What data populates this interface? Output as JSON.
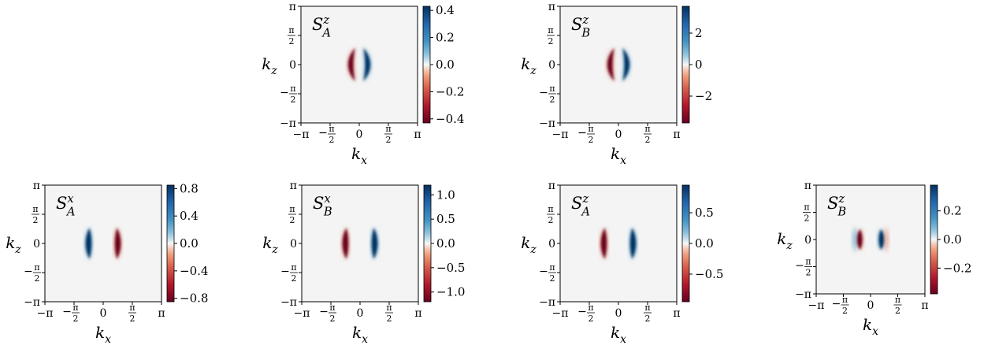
{
  "colors": {
    "neg": "#67001f",
    "pos": "#053061",
    "mid": "#f7f7f7",
    "background": "#f4f4f4"
  },
  "chart_data": [
    {
      "type": "heatmap",
      "title": "S_A^z",
      "title_main": "S",
      "title_sup": "z",
      "title_sub": "A",
      "xlabel": "k",
      "xlabel_sub": "x",
      "ylabel": "k",
      "ylabel_sub": "z",
      "xlim": [
        -3.1416,
        3.1416
      ],
      "ylim": [
        -3.1416,
        3.1416
      ],
      "x_ticks": [
        -3.1416,
        -1.5708,
        0,
        1.5708,
        3.1416
      ],
      "x_tick_labels": [
        "−π",
        "−π/2",
        "0",
        "π/2",
        "π"
      ],
      "y_ticks": [
        -3.1416,
        -1.5708,
        0,
        1.5708,
        3.1416
      ],
      "y_tick_labels": [
        "−π",
        "−π/2",
        "0",
        "π/2",
        "π"
      ],
      "colorbar": {
        "cmap": "RdBu",
        "vmin": -0.43,
        "vmax": 0.43,
        "ticks": [
          -0.4,
          -0.2,
          0.0,
          0.2,
          0.4
        ],
        "tick_labels": [
          "−0.4",
          "−0.2",
          "0.0",
          "0.2",
          "0.4"
        ]
      },
      "features": [
        {
          "shape": "crescent",
          "kx": -0.35,
          "extent_kz": 0.9,
          "value": -0.43,
          "bulge": "left"
        },
        {
          "shape": "crescent",
          "kx": 0.35,
          "extent_kz": 0.9,
          "value": 0.43,
          "bulge": "right"
        }
      ]
    },
    {
      "type": "heatmap",
      "title": "S_B^z",
      "title_main": "S",
      "title_sup": "z",
      "title_sub": "B",
      "xlabel": "k",
      "xlabel_sub": "x",
      "ylabel": "k",
      "ylabel_sub": "z",
      "xlim": [
        -3.1416,
        3.1416
      ],
      "ylim": [
        -3.1416,
        3.1416
      ],
      "x_ticks": [
        -3.1416,
        -1.5708,
        0,
        1.5708,
        3.1416
      ],
      "x_tick_labels": [
        "−π",
        "−π/2",
        "0",
        "π/2",
        "π"
      ],
      "y_ticks": [
        -3.1416,
        -1.5708,
        0,
        1.5708,
        3.1416
      ],
      "y_tick_labels": [
        "−π",
        "−π/2",
        "0",
        "π/2",
        "π"
      ],
      "colorbar": {
        "cmap": "RdBu",
        "vmin": -3.7,
        "vmax": 3.7,
        "ticks": [
          -2,
          0,
          2
        ],
        "tick_labels": [
          "−2",
          "0",
          "2"
        ]
      },
      "features": [
        {
          "shape": "crescent",
          "kx": -0.35,
          "extent_kz": 0.9,
          "value": -3.7,
          "bulge": "left"
        },
        {
          "shape": "crescent",
          "kx": 0.35,
          "extent_kz": 0.9,
          "value": 3.7,
          "bulge": "right"
        }
      ]
    },
    {
      "type": "heatmap",
      "title": "S_A^x",
      "title_main": "S",
      "title_sup": "x",
      "title_sub": "A",
      "xlabel": "k",
      "xlabel_sub": "x",
      "ylabel": "k",
      "ylabel_sub": "z",
      "xlim": [
        -3.1416,
        3.1416
      ],
      "ylim": [
        -3.1416,
        3.1416
      ],
      "x_ticks": [
        -3.1416,
        -1.5708,
        0,
        1.5708,
        3.1416
      ],
      "x_tick_labels": [
        "−π",
        "−π/2",
        "0",
        "π/2",
        "π"
      ],
      "y_ticks": [
        -3.1416,
        -1.5708,
        0,
        1.5708,
        3.1416
      ],
      "y_tick_labels": [
        "−π",
        "−π/2",
        "0",
        "π/2",
        "π"
      ],
      "colorbar": {
        "cmap": "RdBu",
        "vmin": -0.85,
        "vmax": 0.85,
        "ticks": [
          -0.8,
          -0.4,
          0.0,
          0.4,
          0.8
        ],
        "tick_labels": [
          "−0.8",
          "−0.4",
          "0.0",
          "0.4",
          "0.8"
        ]
      },
      "features": [
        {
          "shape": "arc",
          "kx": -0.7,
          "extent_kz": 0.85,
          "value": 0.85,
          "bulge": "left"
        },
        {
          "shape": "arc",
          "kx": 0.7,
          "extent_kz": 0.85,
          "value": -0.85,
          "bulge": "right"
        }
      ]
    },
    {
      "type": "heatmap",
      "title": "S_B^x",
      "title_main": "S",
      "title_sup": "x",
      "title_sub": "B",
      "xlabel": "k",
      "xlabel_sub": "x",
      "ylabel": "k",
      "ylabel_sub": "z",
      "xlim": [
        -3.1416,
        3.1416
      ],
      "ylim": [
        -3.1416,
        3.1416
      ],
      "x_ticks": [
        -3.1416,
        -1.5708,
        0,
        1.5708,
        3.1416
      ],
      "x_tick_labels": [
        "−π",
        "−π/2",
        "0",
        "π/2",
        "π"
      ],
      "y_ticks": [
        -3.1416,
        -1.5708,
        0,
        1.5708,
        3.1416
      ],
      "y_tick_labels": [
        "−π",
        "−π/2",
        "0",
        "π/2",
        "π"
      ],
      "colorbar": {
        "cmap": "RdBu",
        "vmin": -1.2,
        "vmax": 1.2,
        "ticks": [
          -1.0,
          -0.5,
          0.0,
          0.5,
          1.0
        ],
        "tick_labels": [
          "−1.0",
          "−0.5",
          "0.0",
          "0.5",
          "1.0"
        ]
      },
      "features": [
        {
          "shape": "arc",
          "kx": -0.7,
          "extent_kz": 0.85,
          "value": -1.2,
          "bulge": "left"
        },
        {
          "shape": "arc",
          "kx": 0.7,
          "extent_kz": 0.85,
          "value": 1.2,
          "bulge": "right"
        }
      ]
    },
    {
      "type": "heatmap",
      "title": "S_A^z",
      "title_main": "S",
      "title_sup": "z",
      "title_sub": "A",
      "xlabel": "k",
      "xlabel_sub": "x",
      "ylabel": "k",
      "ylabel_sub": "z",
      "xlim": [
        -3.1416,
        3.1416
      ],
      "ylim": [
        -3.1416,
        3.1416
      ],
      "x_ticks": [
        -3.1416,
        -1.5708,
        0,
        1.5708,
        3.1416
      ],
      "x_tick_labels": [
        "−π",
        "−π/2",
        "0",
        "π/2",
        "π"
      ],
      "y_ticks": [
        -3.1416,
        -1.5708,
        0,
        1.5708,
        3.1416
      ],
      "y_tick_labels": [
        "−π",
        "−π/2",
        "0",
        "π/2",
        "π"
      ],
      "colorbar": {
        "cmap": "RdBu",
        "vmin": -0.95,
        "vmax": 0.95,
        "ticks": [
          -0.5,
          0.0,
          0.5
        ],
        "tick_labels": [
          "−0.5",
          "0.0",
          "0.5"
        ]
      },
      "features": [
        {
          "shape": "arc",
          "kx": -0.7,
          "extent_kz": 0.85,
          "value": -0.95,
          "bulge": "left"
        },
        {
          "shape": "arc",
          "kx": 0.7,
          "extent_kz": 0.85,
          "value": 0.95,
          "bulge": "right"
        }
      ]
    },
    {
      "type": "heatmap",
      "title": "S_B^z",
      "title_main": "S",
      "title_sup": "z",
      "title_sub": "B",
      "xlabel": "k",
      "xlabel_sub": "x",
      "ylabel": "k",
      "ylabel_sub": "z",
      "xlim": [
        -3.1416,
        3.1416
      ],
      "ylim": [
        -3.1416,
        3.1416
      ],
      "x_ticks": [
        -3.1416,
        -1.5708,
        0,
        1.5708,
        3.1416
      ],
      "x_tick_labels": [
        "−π",
        "−π/2",
        "0",
        "π/2",
        "π"
      ],
      "y_ticks": [
        -3.1416,
        -1.5708,
        0,
        1.5708,
        3.1416
      ],
      "y_tick_labels": [
        "−π",
        "−π/2",
        "0",
        "π/2",
        "π"
      ],
      "colorbar": {
        "cmap": "RdBu",
        "vmin": -0.38,
        "vmax": 0.38,
        "ticks": [
          -0.2,
          0.0,
          0.2
        ],
        "tick_labels": [
          "−0.2",
          "0.0",
          "0.2"
        ]
      },
      "features": [
        {
          "shape": "arc",
          "kx": -0.55,
          "extent_kz": 0.6,
          "value": -0.38,
          "bulge": "left"
        },
        {
          "shape": "arc",
          "kx": 0.55,
          "extent_kz": 0.6,
          "value": 0.38,
          "bulge": "right"
        },
        {
          "shape": "arc",
          "kx": -0.85,
          "extent_kz": 0.75,
          "value": 0.06,
          "bulge": "left"
        },
        {
          "shape": "arc",
          "kx": 0.85,
          "extent_kz": 0.75,
          "value": -0.04,
          "bulge": "right"
        }
      ]
    }
  ]
}
